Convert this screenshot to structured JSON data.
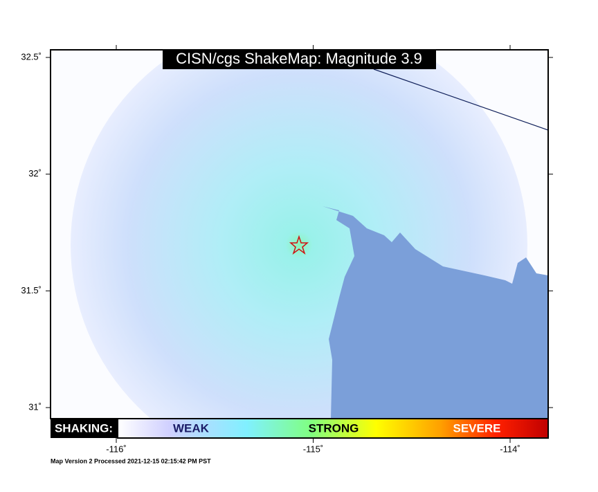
{
  "map": {
    "title": "CISN/cgs ShakeMap: Magnitude 3.9",
    "lat_ticks": [
      {
        "value": 32.5,
        "label": "32.5˚"
      },
      {
        "value": 32,
        "label": "32˚"
      },
      {
        "value": 31.5,
        "label": "31.5˚"
      },
      {
        "value": 31,
        "label": "31˚"
      }
    ],
    "lon_ticks": [
      {
        "value": -116,
        "label": "-116˚"
      },
      {
        "value": -115,
        "label": "-115˚"
      },
      {
        "value": -114,
        "label": "-114˚"
      }
    ],
    "legend": {
      "heading": "SHAKING:",
      "labels": [
        "WEAK",
        "STRONG",
        "SEVERE"
      ]
    },
    "footer": "Map Version 2 Processed 2021-12-15 02:15:42 PM PST"
  }
}
